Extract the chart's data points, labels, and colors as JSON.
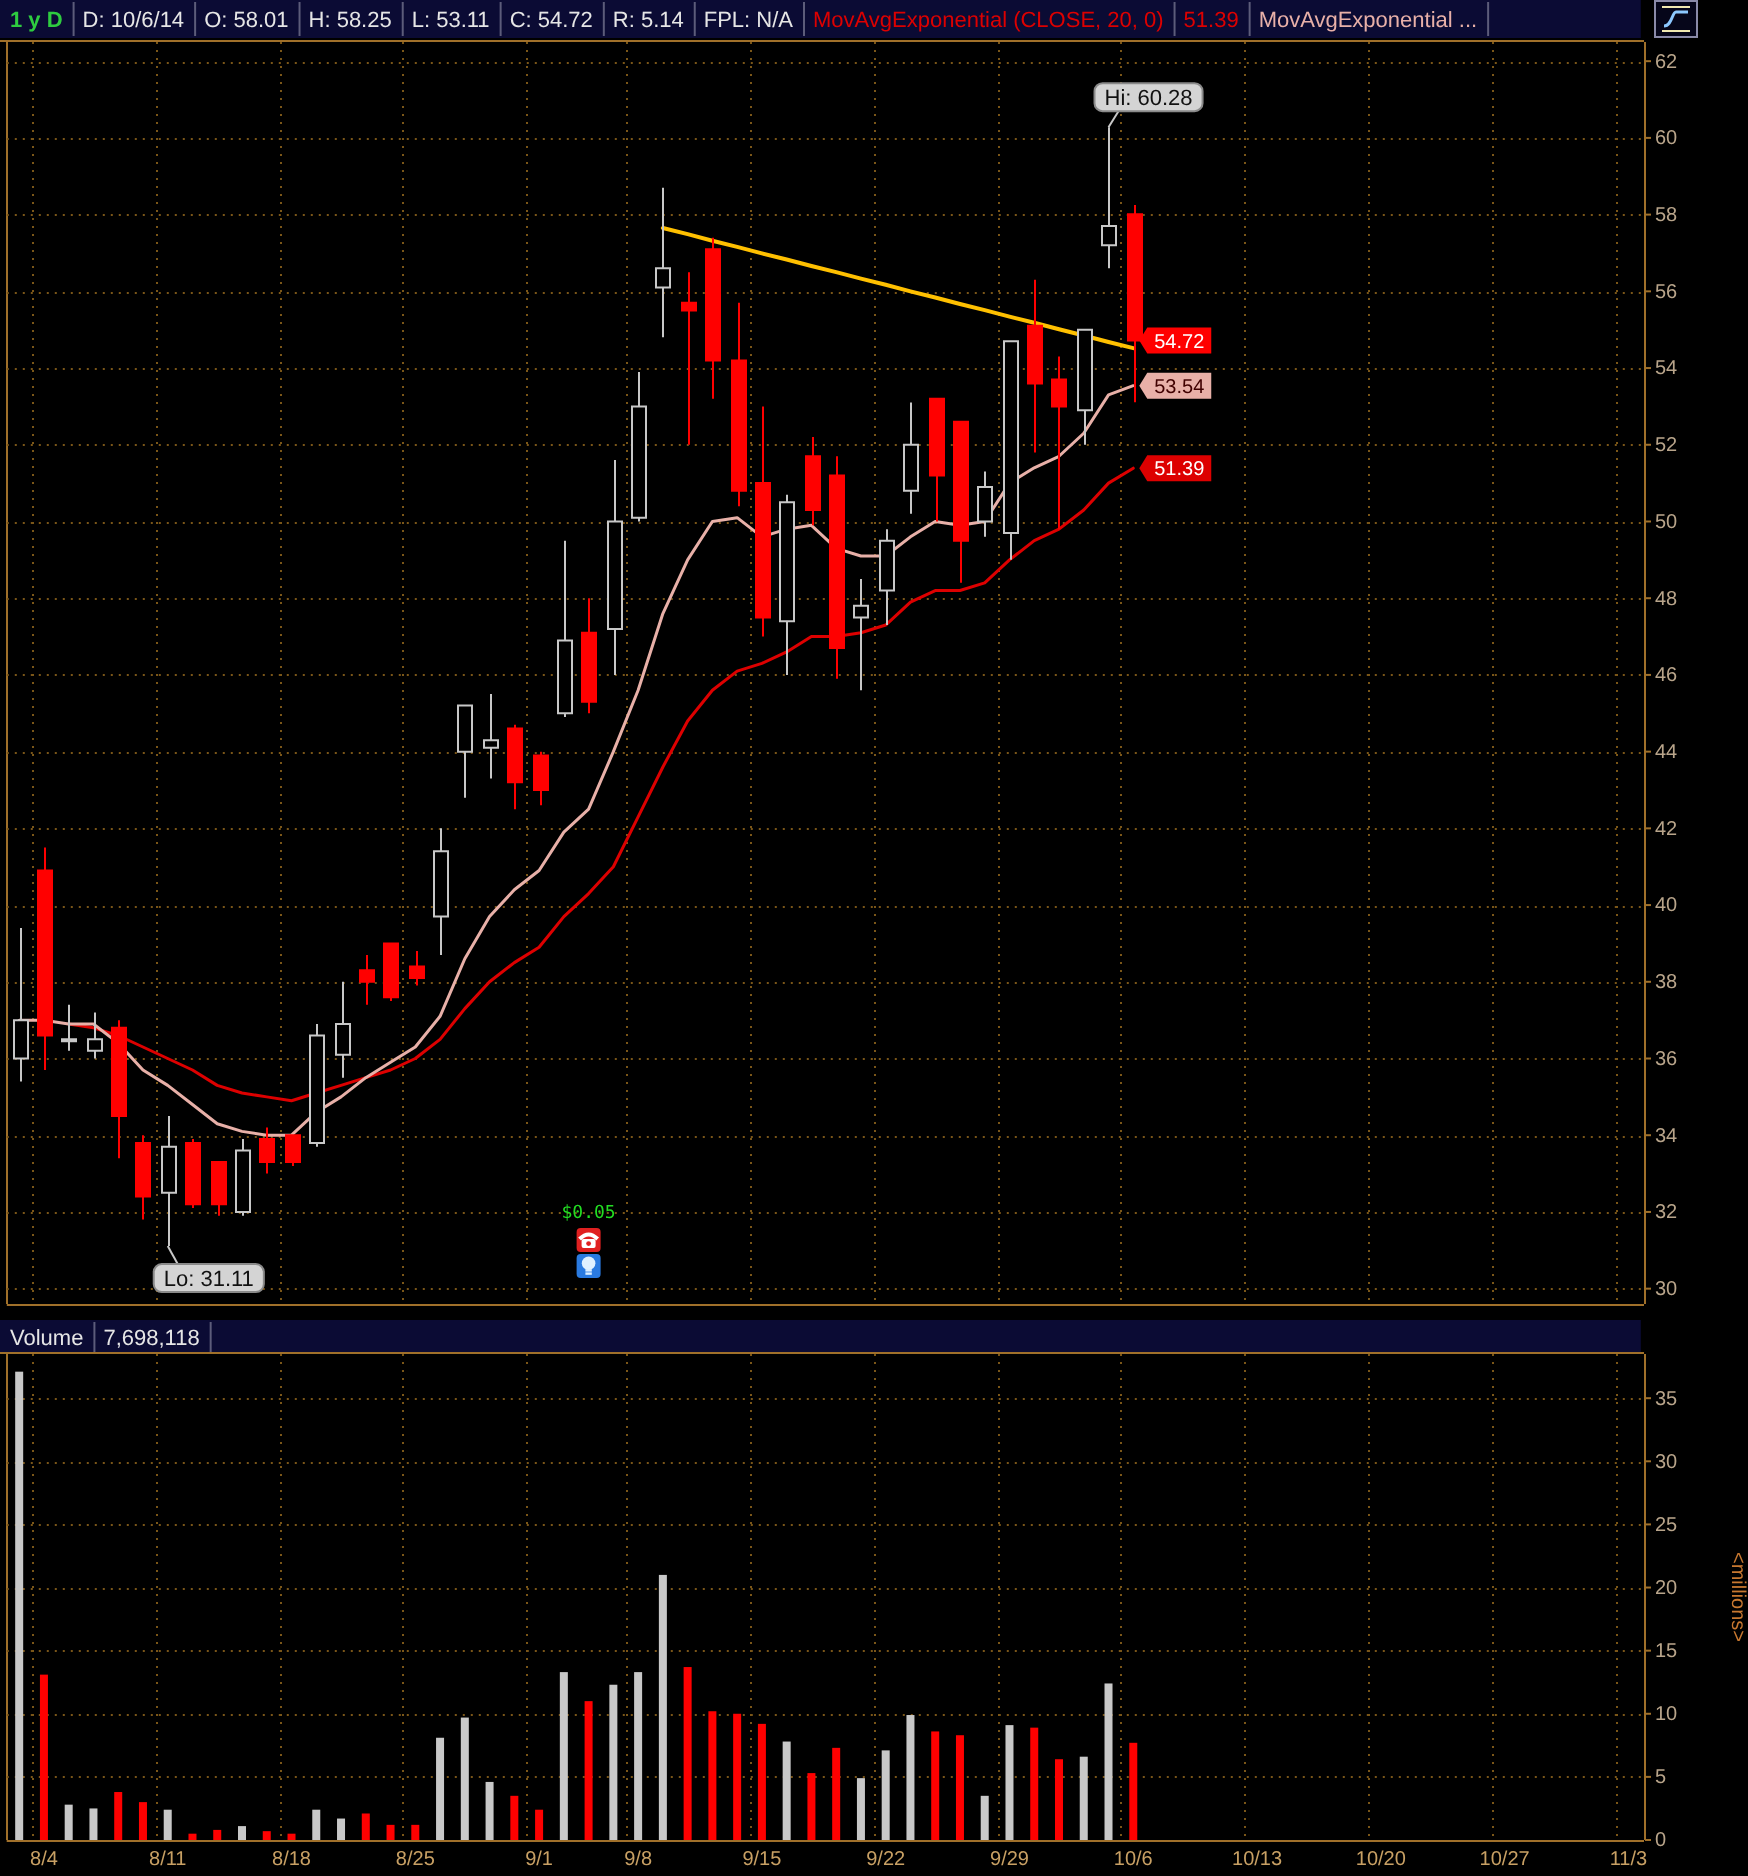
{
  "chart_data": [
    {
      "type": "candlestick",
      "title": "1 y D",
      "categories": [
        null,
        "8/4",
        null,
        null,
        null,
        null,
        "8/11",
        null,
        null,
        null,
        null,
        "8/18",
        null,
        null,
        null,
        null,
        "8/25",
        null,
        null,
        null,
        null,
        "9/1",
        null,
        null,
        null,
        "9/8",
        null,
        null,
        null,
        null,
        "9/15",
        null,
        null,
        null,
        null,
        "9/22",
        null,
        null,
        null,
        null,
        "9/29",
        null,
        null,
        null,
        null,
        "10/6",
        null,
        null,
        null,
        null,
        "10/13",
        null,
        null,
        null,
        null,
        "10/20",
        null,
        null,
        null,
        null,
        "10/27",
        null,
        null,
        null,
        null,
        "11/3"
      ],
      "ohlc": [
        [
          36.0,
          39.4,
          35.4,
          37.0
        ],
        [
          40.9,
          41.5,
          35.7,
          36.6
        ],
        [
          36.5,
          37.4,
          36.2,
          36.5
        ],
        [
          36.2,
          37.2,
          36.0,
          36.5
        ],
        [
          36.8,
          37.0,
          33.4,
          34.5
        ],
        [
          33.8,
          34.0,
          31.8,
          32.4
        ],
        [
          32.5,
          34.5,
          31.11,
          33.7
        ],
        [
          33.8,
          33.9,
          32.1,
          32.2
        ],
        [
          33.3,
          33.3,
          31.9,
          32.2
        ],
        [
          32.0,
          33.9,
          31.9,
          33.6
        ],
        [
          33.9,
          34.2,
          33.0,
          33.3
        ],
        [
          34.0,
          34.0,
          33.2,
          33.3
        ],
        [
          33.8,
          36.9,
          33.7,
          36.6
        ],
        [
          36.1,
          38.0,
          35.5,
          36.9
        ],
        [
          38.3,
          38.7,
          37.4,
          38.0
        ],
        [
          39.0,
          39.0,
          37.5,
          37.6
        ],
        [
          38.4,
          38.8,
          37.9,
          38.1
        ],
        [
          39.7,
          42.0,
          38.7,
          41.4
        ],
        [
          44.0,
          45.2,
          42.8,
          45.2
        ],
        [
          44.1,
          45.5,
          43.3,
          44.3
        ],
        [
          44.6,
          44.7,
          42.5,
          43.2
        ],
        [
          43.9,
          44.0,
          42.6,
          43.0
        ],
        [
          45.0,
          49.5,
          44.9,
          46.9
        ],
        [
          47.1,
          48.0,
          45.0,
          45.3
        ],
        [
          47.2,
          51.6,
          46.0,
          50.0
        ],
        [
          50.1,
          53.9,
          50.0,
          53.0
        ],
        [
          56.1,
          58.7,
          54.8,
          56.6
        ],
        [
          55.7,
          56.5,
          52.0,
          55.5
        ],
        [
          57.1,
          57.4,
          53.2,
          54.2
        ],
        [
          54.2,
          55.7,
          50.4,
          50.8
        ],
        [
          51.0,
          53.0,
          47.0,
          47.5
        ],
        [
          47.4,
          50.7,
          46.0,
          50.5
        ],
        [
          51.7,
          52.2,
          49.9,
          50.3
        ],
        [
          51.2,
          51.7,
          45.9,
          46.7
        ],
        [
          47.5,
          48.5,
          45.6,
          47.8
        ],
        [
          48.2,
          49.8,
          47.3,
          49.5
        ],
        [
          50.8,
          53.1,
          50.2,
          52.0
        ],
        [
          53.2,
          53.2,
          50.0,
          51.2
        ],
        [
          52.6,
          52.6,
          48.4,
          49.5
        ],
        [
          50.0,
          51.3,
          49.6,
          50.9
        ],
        [
          49.7,
          54.7,
          49.0,
          54.7
        ],
        [
          55.1,
          56.3,
          51.8,
          53.6
        ],
        [
          53.7,
          54.3,
          49.8,
          53.0
        ],
        [
          52.9,
          55.0,
          52.0,
          55.0
        ],
        [
          57.2,
          60.28,
          56.6,
          57.7
        ],
        [
          58.01,
          58.25,
          53.11,
          54.72
        ],
        null,
        null,
        null,
        null,
        null,
        null,
        null,
        null,
        null,
        null,
        null,
        null,
        null,
        null,
        null,
        null,
        null,
        null,
        null,
        null
      ],
      "colors": [
        "#c8c8c8",
        "#ff0000",
        "#c8c8c8",
        "#c8c8c8",
        "#ff0000",
        "#ff0000",
        "#c8c8c8",
        "#ff0000",
        "#ff0000",
        "#c8c8c8",
        "#ff0000",
        "#ff0000",
        "#c8c8c8",
        "#c8c8c8",
        "#ff0000",
        "#ff0000",
        "#ff0000",
        "#c8c8c8",
        "#c8c8c8",
        "#c8c8c8",
        "#ff0000",
        "#ff0000",
        "#c8c8c8",
        "#ff0000",
        "#c8c8c8",
        "#c8c8c8",
        "#c8c8c8",
        "#ff0000",
        "#ff0000",
        "#ff0000",
        "#ff0000",
        "#c8c8c8",
        "#ff0000",
        "#ff0000",
        "#c8c8c8",
        "#c8c8c8",
        "#c8c8c8",
        "#ff0000",
        "#ff0000",
        "#c8c8c8",
        "#c8c8c8",
        "#ff0000",
        "#ff0000",
        "#c8c8c8",
        "#c8c8c8",
        "#ff0000",
        null,
        null,
        null,
        null,
        null,
        null,
        null,
        null,
        null,
        null,
        null,
        null,
        null,
        null,
        null,
        null,
        null,
        null,
        null,
        null
      ],
      "series": [
        {
          "name": "MovAvgExponential (CLOSE, 20, 0)",
          "type": "line",
          "color": "#dd0000",
          "values": [
            null,
            null,
            36.9,
            36.8,
            36.6,
            36.3,
            36.0,
            35.7,
            35.3,
            35.1,
            35.0,
            34.9,
            35.1,
            35.3,
            35.5,
            35.7,
            36.0,
            36.5,
            37.3,
            38.0,
            38.5,
            38.9,
            39.7,
            40.3,
            41.0,
            42.3,
            43.6,
            44.8,
            45.6,
            46.1,
            46.3,
            46.6,
            47.0,
            47.0,
            47.1,
            47.3,
            47.9,
            48.2,
            48.2,
            48.4,
            49.0,
            49.5,
            49.8,
            50.3,
            51.0,
            51.39,
            null,
            null,
            null,
            null,
            null,
            null,
            null,
            null,
            null,
            null,
            null,
            null,
            null,
            null,
            null,
            null,
            null,
            null,
            null,
            null
          ]
        },
        {
          "name": "MovAvgExponential ...",
          "type": "line",
          "color": "#e8b0a8",
          "values": [
            37.0,
            37.0,
            36.9,
            36.9,
            36.4,
            35.7,
            35.3,
            34.8,
            34.3,
            34.1,
            34.0,
            34.0,
            34.6,
            35.0,
            35.5,
            35.9,
            36.3,
            37.1,
            38.6,
            39.7,
            40.4,
            40.9,
            41.9,
            42.5,
            44.0,
            45.6,
            47.6,
            49.0,
            50.0,
            50.1,
            49.6,
            49.8,
            49.9,
            49.3,
            49.1,
            49.1,
            49.6,
            50.0,
            49.9,
            50.0,
            51.0,
            51.4,
            51.7,
            52.3,
            53.3,
            53.54,
            null,
            null,
            null,
            null,
            null,
            null,
            null,
            null,
            null,
            null,
            null,
            null,
            null,
            null,
            null,
            null,
            null,
            null,
            null,
            null
          ]
        },
        {
          "type": "line",
          "color": "#ffc000",
          "values": [
            null,
            null,
            null,
            null,
            null,
            null,
            null,
            null,
            null,
            null,
            null,
            null,
            null,
            null,
            null,
            null,
            null,
            null,
            null,
            null,
            null,
            null,
            null,
            null,
            null,
            null,
            57.65,
            57.49,
            57.32,
            57.16,
            56.99,
            56.83,
            56.66,
            56.5,
            56.33,
            56.17,
            56.0,
            55.84,
            55.67,
            55.51,
            55.34,
            55.18,
            55.01,
            54.85,
            54.68,
            54.52,
            null,
            null,
            null,
            null,
            null,
            null,
            null,
            null,
            null,
            null,
            null,
            null,
            null,
            null,
            null,
            null,
            null,
            null,
            null,
            null
          ]
        }
      ],
      "ylim": [
        29.6,
        62.5
      ],
      "yticks": [
        30,
        32,
        34,
        36,
        38,
        40,
        42,
        44,
        46,
        48,
        50,
        52,
        54,
        56,
        58,
        60,
        62
      ],
      "grid": true,
      "legend": "top",
      "tick_labels": "y",
      "annotations": [
        "D: 10/6/14",
        "O: 58.01",
        "H: 58.25",
        "L: 53.11",
        "C: 54.72",
        "R: 5.14",
        "FPL: N/A",
        "51.39",
        "$0.05",
        "Hi: 60.28",
        "Lo: 31.11",
        {
          "text": "54.72",
          "x": "10/6",
          "y": 54.72
        },
        {
          "text": "53.54",
          "x": "10/6",
          "y": 53.54
        },
        {
          "text": "51.39",
          "x": "10/6",
          "y": 51.39
        }
      ]
    },
    {
      "type": "bar",
      "title": "Volume",
      "categories": [
        null,
        "8/4",
        null,
        null,
        null,
        null,
        "8/11",
        null,
        null,
        null,
        null,
        "8/18",
        null,
        null,
        null,
        null,
        "8/25",
        null,
        null,
        null,
        null,
        "9/1",
        null,
        null,
        null,
        "9/8",
        null,
        null,
        null,
        null,
        "9/15",
        null,
        null,
        null,
        null,
        "9/22",
        null,
        null,
        null,
        null,
        "9/29",
        null,
        null,
        null,
        null,
        "10/6",
        null,
        null,
        null,
        null,
        "10/13",
        null,
        null,
        null,
        null,
        "10/20",
        null,
        null,
        null,
        null,
        "10/27",
        null,
        null,
        null,
        null,
        "11/3"
      ],
      "values": [
        37.1,
        13.1,
        2.8,
        2.5,
        3.8,
        3.0,
        2.4,
        0.5,
        0.8,
        1.1,
        0.7,
        0.5,
        2.4,
        1.7,
        2.1,
        1.2,
        1.2,
        8.1,
        9.7,
        4.6,
        3.5,
        2.4,
        13.3,
        11.0,
        12.3,
        13.3,
        21.0,
        13.7,
        10.2,
        10.0,
        9.2,
        7.8,
        5.3,
        7.3,
        4.9,
        7.1,
        9.9,
        8.6,
        8.3,
        3.5,
        9.1,
        8.9,
        6.4,
        6.6,
        12.4,
        7.7,
        null,
        null,
        null,
        null,
        null,
        null,
        null,
        null,
        null,
        null,
        null,
        null,
        null,
        null,
        null,
        null,
        null,
        null,
        null,
        null
      ],
      "colors": [
        "#c8c8c8",
        "#ff0000",
        "#c8c8c8",
        "#c8c8c8",
        "#ff0000",
        "#ff0000",
        "#c8c8c8",
        "#ff0000",
        "#ff0000",
        "#c8c8c8",
        "#ff0000",
        "#ff0000",
        "#c8c8c8",
        "#c8c8c8",
        "#ff0000",
        "#ff0000",
        "#ff0000",
        "#c8c8c8",
        "#c8c8c8",
        "#c8c8c8",
        "#ff0000",
        "#ff0000",
        "#c8c8c8",
        "#ff0000",
        "#c8c8c8",
        "#c8c8c8",
        "#c8c8c8",
        "#ff0000",
        "#ff0000",
        "#ff0000",
        "#ff0000",
        "#c8c8c8",
        "#ff0000",
        "#ff0000",
        "#c8c8c8",
        "#c8c8c8",
        "#c8c8c8",
        "#ff0000",
        "#ff0000",
        "#c8c8c8",
        "#c8c8c8",
        "#ff0000",
        "#ff0000",
        "#c8c8c8",
        "#c8c8c8",
        "#ff0000",
        null,
        null,
        null,
        null,
        null,
        null,
        null,
        null,
        null,
        null,
        null,
        null,
        null,
        null,
        null,
        null,
        null,
        null,
        null,
        null
      ],
      "ylim": [
        0,
        38.5
      ],
      "yticks": [
        0,
        5,
        10,
        15,
        20,
        25,
        30,
        35
      ],
      "ylabel": "<millions>",
      "grid": true,
      "annotations": [
        "7,698,118"
      ]
    }
  ]
}
